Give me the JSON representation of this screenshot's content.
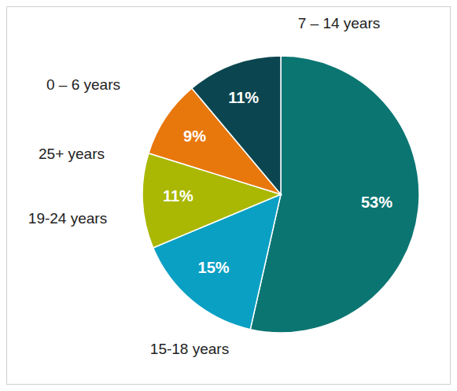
{
  "chart_data": {
    "type": "pie",
    "categories": [
      "7 – 14 years",
      "15-18 years",
      "19-24 years",
      "25+ years",
      "0 – 6 years"
    ],
    "values": [
      53,
      15,
      11,
      9,
      11
    ],
    "value_labels": [
      "53%",
      "15%",
      "11%",
      "9%",
      "11%"
    ],
    "colors": [
      "#0b7572",
      "#0aa0c4",
      "#aab803",
      "#e8770c",
      "#0b4650"
    ],
    "data_labels": true
  }
}
